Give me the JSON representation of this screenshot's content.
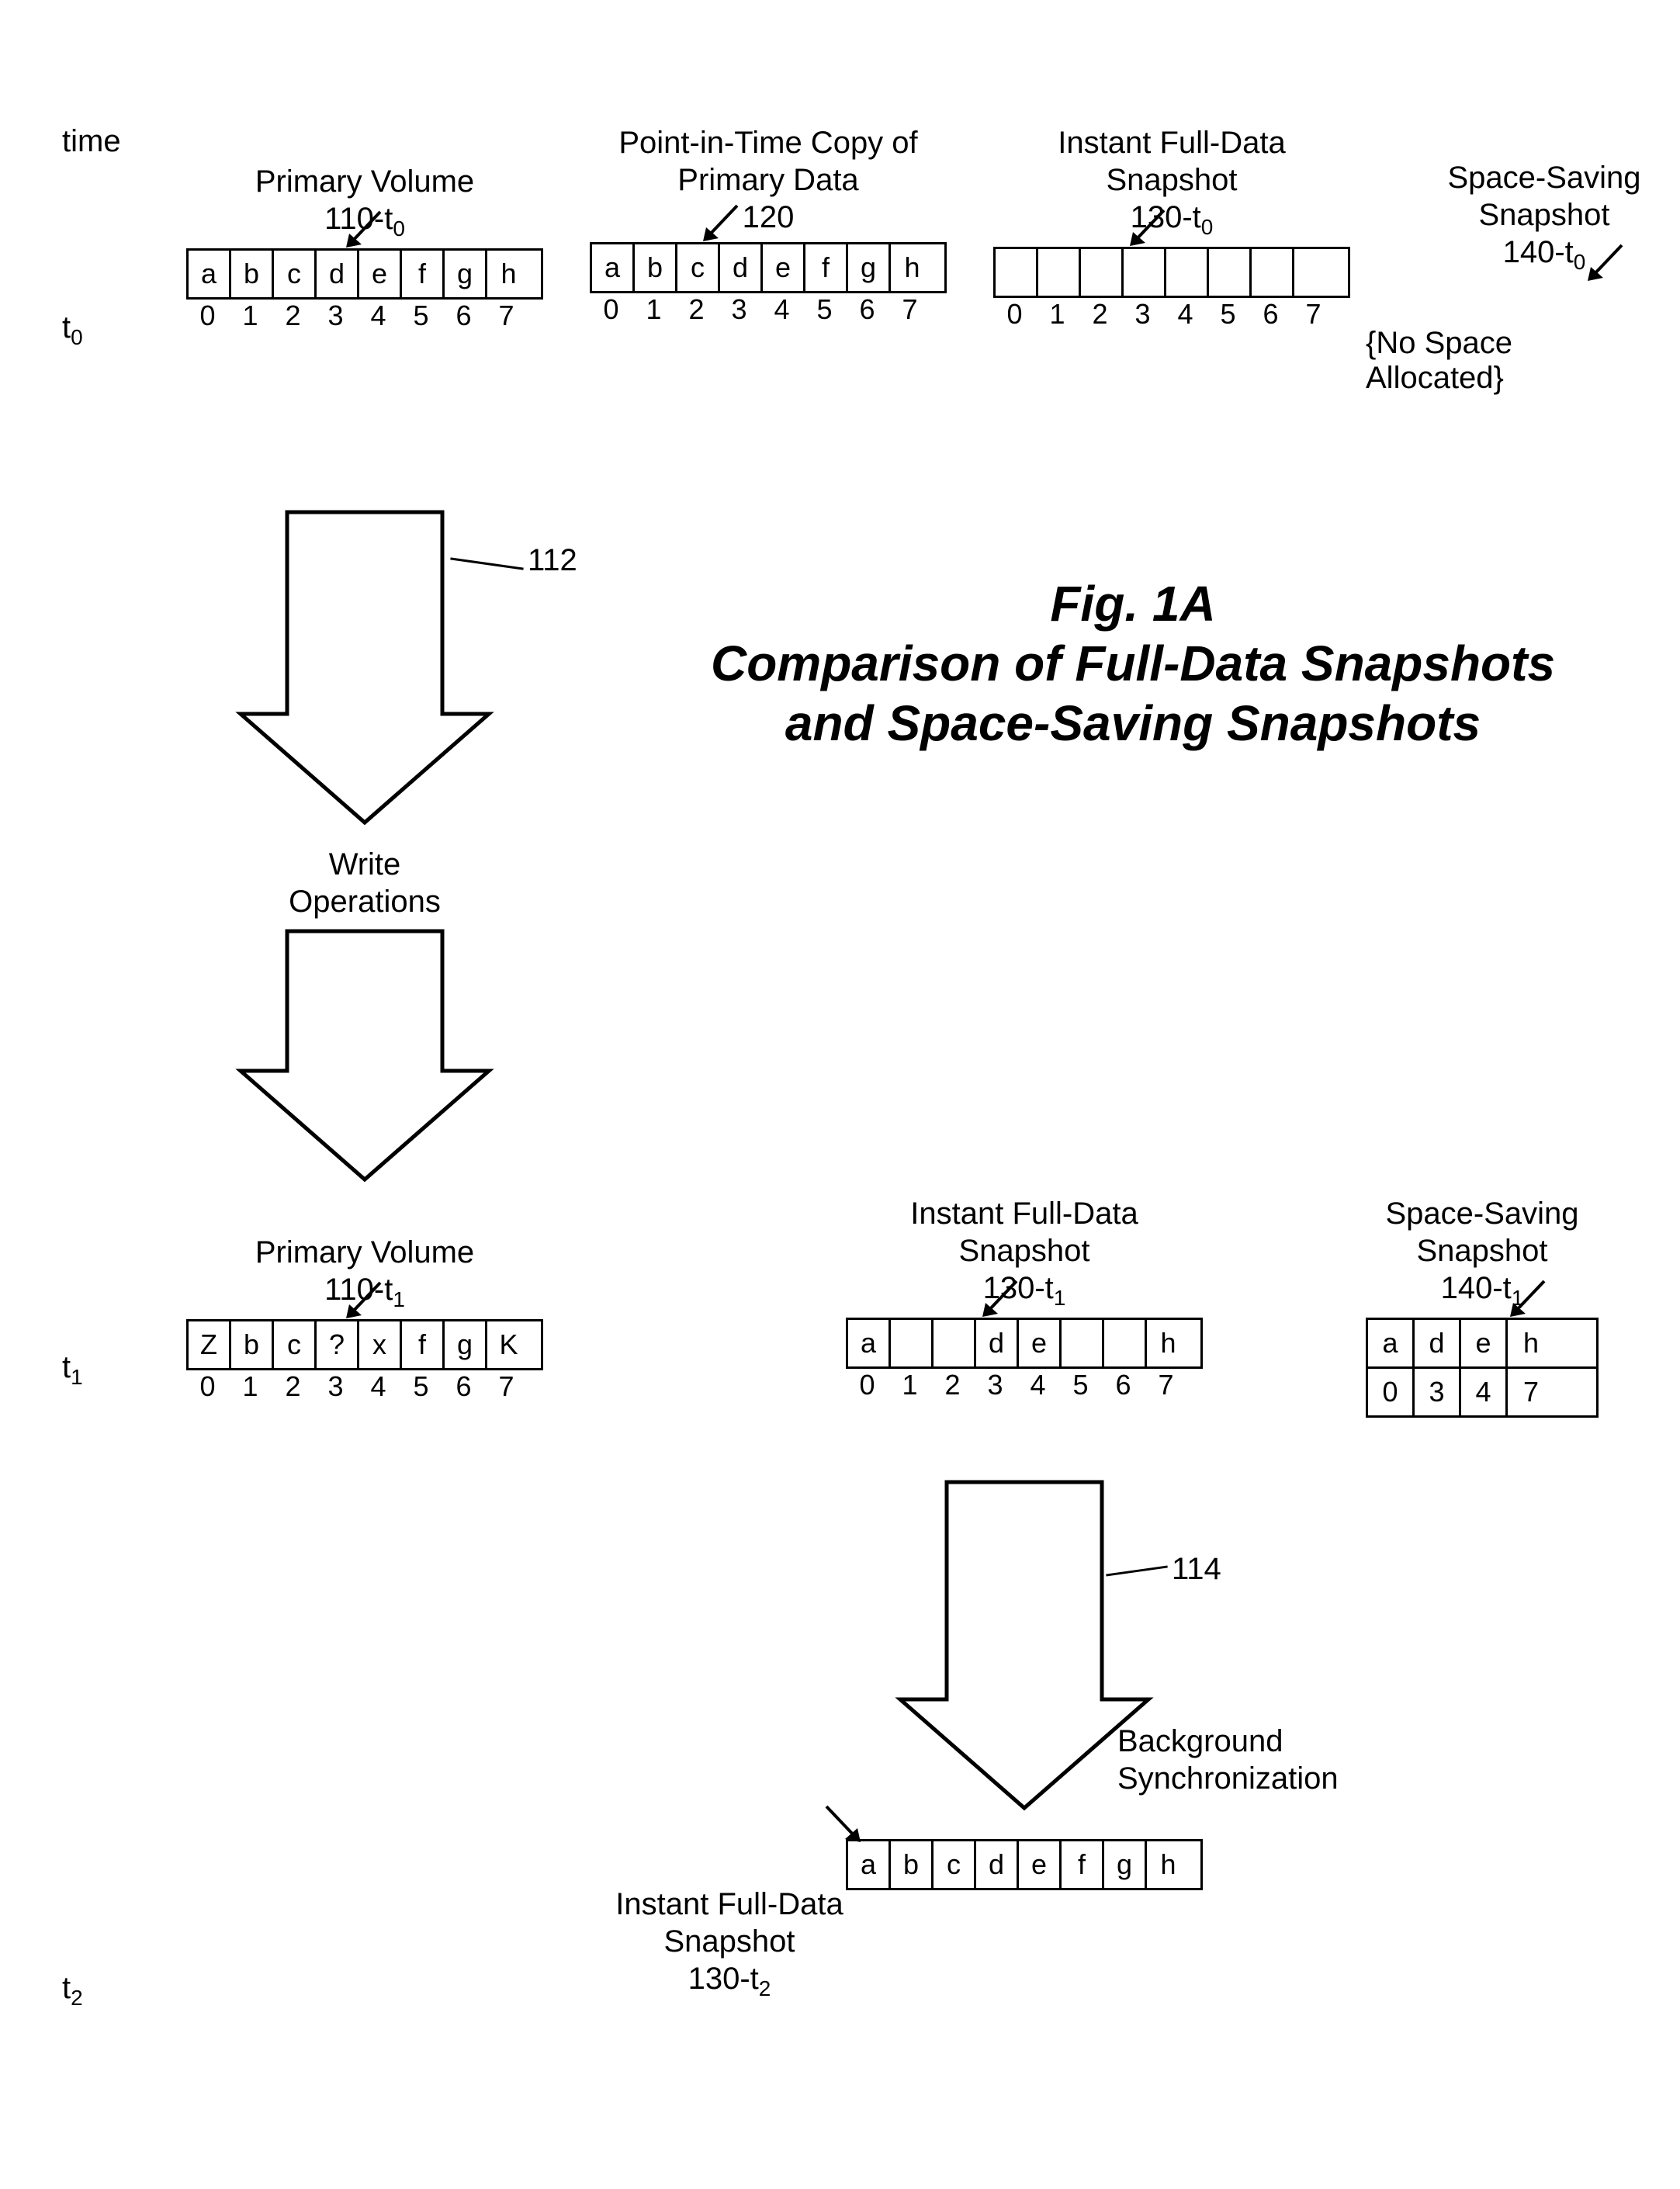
{
  "time": {
    "header": "time",
    "t0": "t",
    "t0_sub": "0",
    "t1": "t",
    "t1_sub": "1",
    "t2": "t",
    "t2_sub": "2"
  },
  "title": {
    "line1": "Fig. 1A",
    "line2": "Comparison of Full-Data Snapshots",
    "line3": "and Space-Saving Snapshots"
  },
  "labels": {
    "primary_t0": {
      "line1": "Primary Volume",
      "ref": "110-t",
      "ref_sub": "0"
    },
    "pit_copy": {
      "line1": "Point-in-Time Copy of",
      "line2": "Primary Data",
      "ref": "120"
    },
    "fulldata_t0": {
      "line1": "Instant Full-Data",
      "line2": "Snapshot",
      "ref": "130-t",
      "ref_sub": "0"
    },
    "spacesave_t0": {
      "line1": "Space-Saving Snapshot",
      "ref": "140-t",
      "ref_sub": "0"
    },
    "primary_t1": {
      "line1": "Primary Volume",
      "ref": "110-t",
      "ref_sub": "1"
    },
    "fulldata_t1": {
      "line1": "Instant Full-Data",
      "line2": "Snapshot",
      "ref": "130-t",
      "ref_sub": "1"
    },
    "spacesave_t1": {
      "line1": "Space-Saving",
      "line2": "Snapshot",
      "ref": "140-t",
      "ref_sub": "1"
    },
    "fulldata_t2": {
      "line1": "Instant Full-Data",
      "line2": "Snapshot",
      "ref": "130-t",
      "ref_sub": "2"
    }
  },
  "blocks": {
    "primary_t0": {
      "cells": [
        "a",
        "b",
        "c",
        "d",
        "e",
        "f",
        "g",
        "h"
      ],
      "idx": [
        "0",
        "1",
        "2",
        "3",
        "4",
        "5",
        "6",
        "7"
      ]
    },
    "pit_copy": {
      "cells": [
        "a",
        "b",
        "c",
        "d",
        "e",
        "f",
        "g",
        "h"
      ],
      "idx": [
        "0",
        "1",
        "2",
        "3",
        "4",
        "5",
        "6",
        "7"
      ]
    },
    "fulldata_t0": {
      "cells": [
        "",
        "",
        "",
        "",
        "",
        "",
        "",
        ""
      ],
      "idx": [
        "0",
        "1",
        "2",
        "3",
        "4",
        "5",
        "6",
        "7"
      ]
    },
    "primary_t1": {
      "cells": [
        "Z",
        "b",
        "c",
        "?",
        "x",
        "f",
        "g",
        "K"
      ],
      "idx": [
        "0",
        "1",
        "2",
        "3",
        "4",
        "5",
        "6",
        "7"
      ]
    },
    "fulldata_t1": {
      "cells": [
        "a",
        "",
        "",
        "d",
        "e",
        "",
        "",
        "h"
      ],
      "idx": [
        "0",
        "1",
        "2",
        "3",
        "4",
        "5",
        "6",
        "7"
      ]
    },
    "spacesave_t1": {
      "cells": [
        "a",
        "d",
        "e",
        "h"
      ],
      "idx": [
        "0",
        "3",
        "4",
        "7"
      ]
    },
    "fulldata_t2": {
      "cells": [
        "a",
        "b",
        "c",
        "d",
        "e",
        "f",
        "g",
        "h"
      ]
    }
  },
  "arrows": {
    "write_ref": "112",
    "write_label1": "Write",
    "write_label2": "Operations",
    "bg_ref": "114",
    "bg_label1": "Background",
    "bg_label2": "Synchronization"
  },
  "misc": {
    "no_space": "{No Space Allocated}"
  },
  "style": {
    "stroke": "#000000",
    "stroke_width": 3,
    "font_color": "#000000"
  }
}
